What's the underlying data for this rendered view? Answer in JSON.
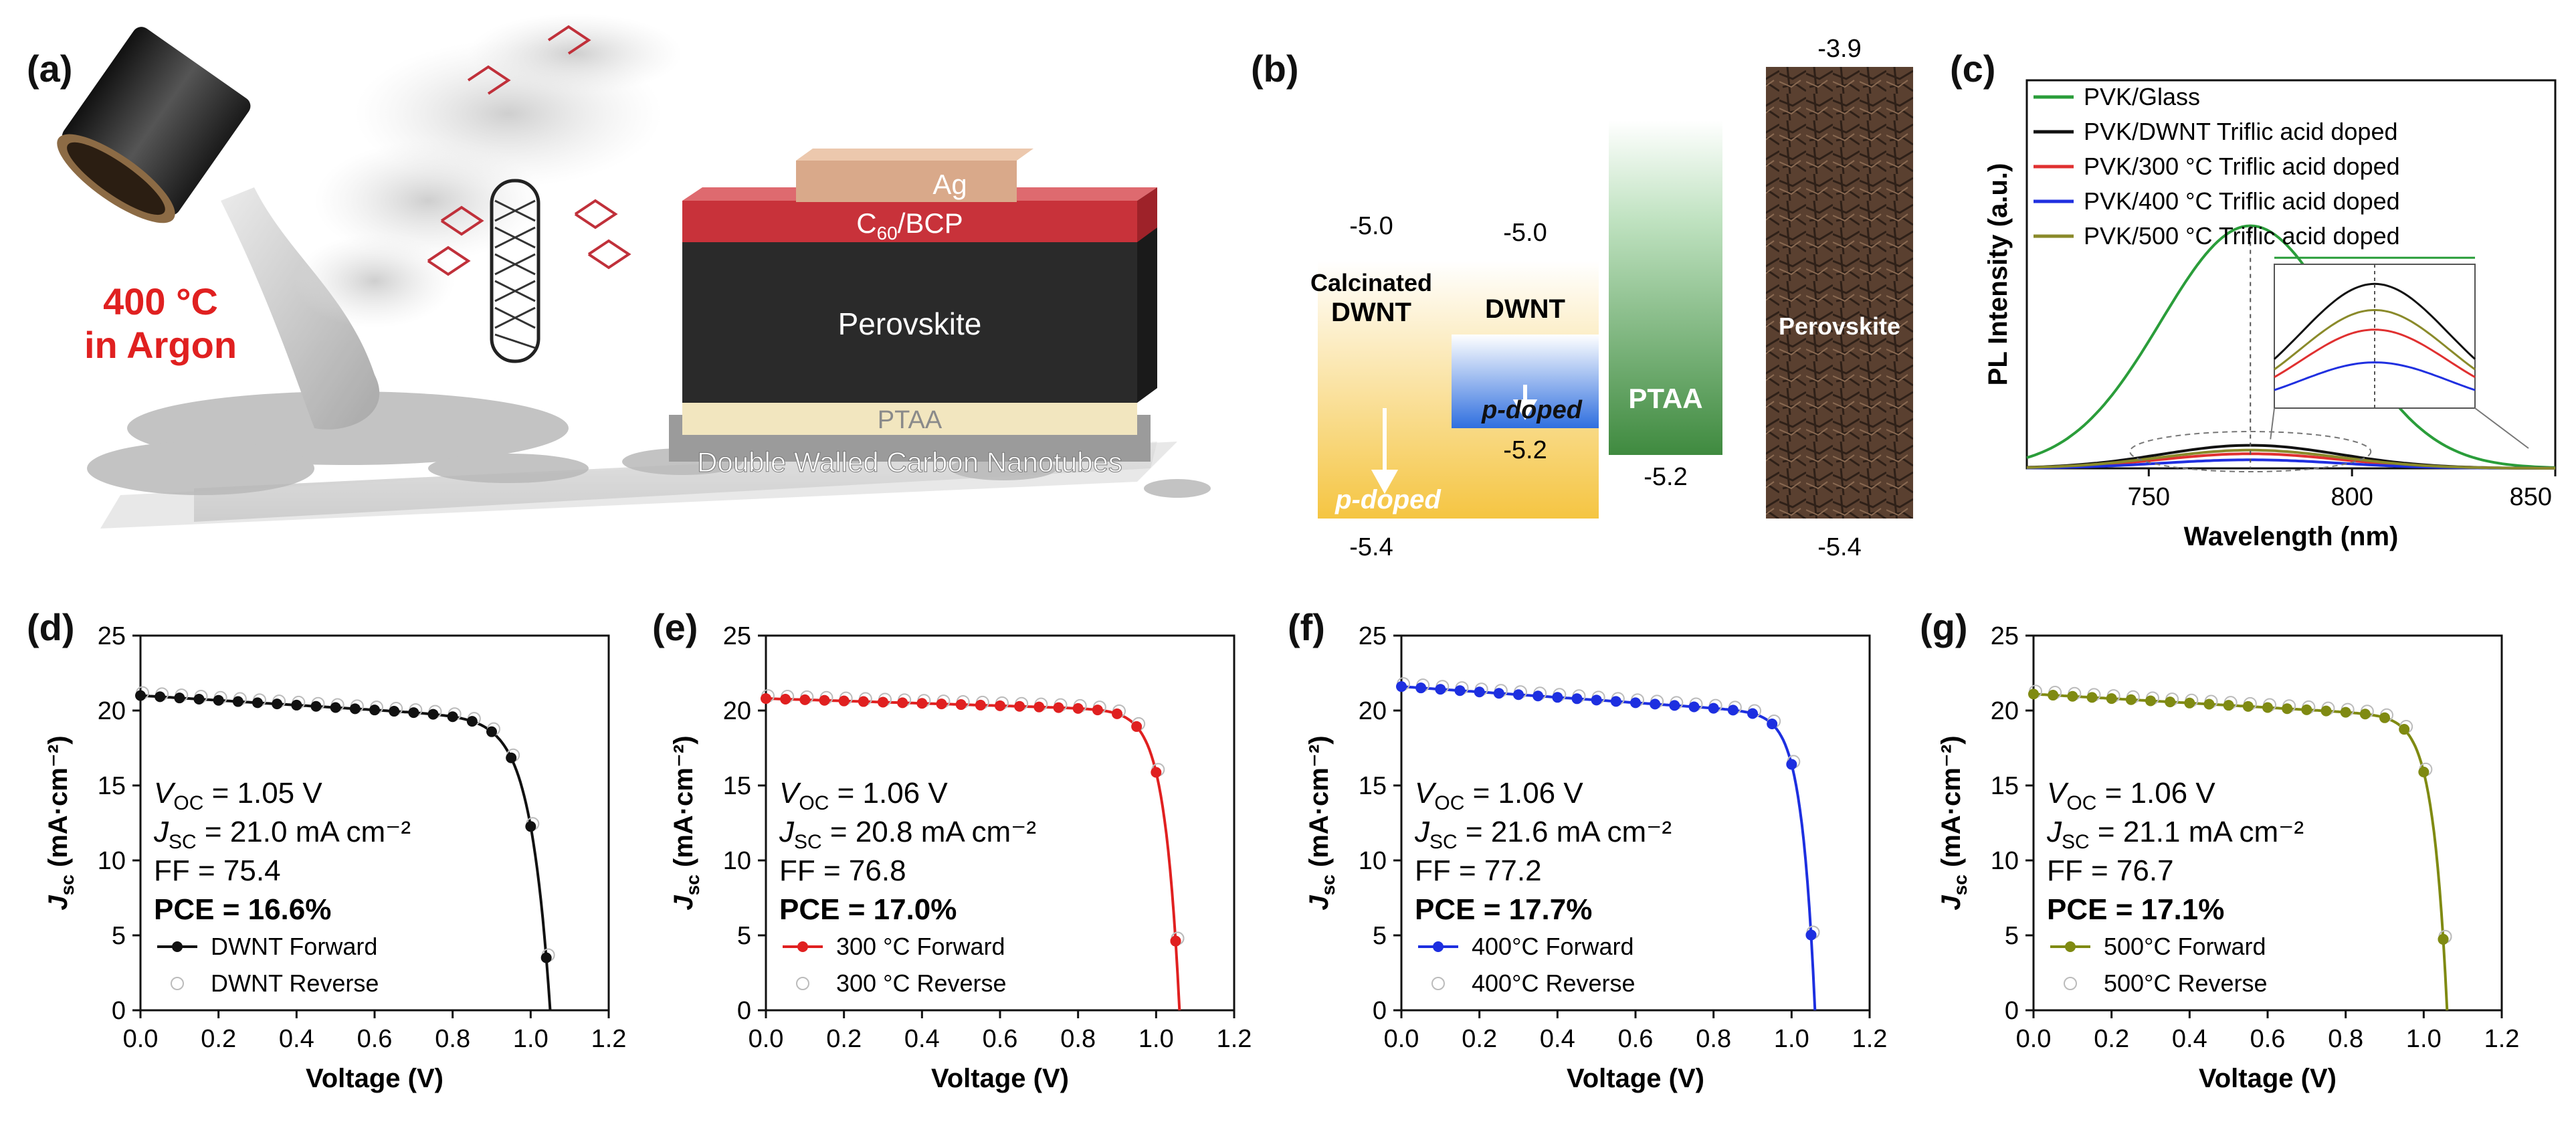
{
  "panels": {
    "a": "(a)",
    "b": "(b)",
    "c": "(c)",
    "d": "(d)",
    "e": "(e)",
    "f": "(f)",
    "g": "(g)"
  },
  "schematic": {
    "process_line1": "400 °C",
    "process_line2": "in Argon",
    "layers": {
      "ag": "Ag",
      "c60_main": "C",
      "c60_sub": "60",
      "c60_rest": "/BCP",
      "perovskite": "Perovskite",
      "ptaa": "PTAA",
      "dwnt": "Double Walled Carbon Nanotubes"
    },
    "colors": {
      "ag": "#d9a98a",
      "c60": "#c8323a",
      "perovskite": "#2a2a2a",
      "ptaa": "#f2e6bf",
      "substrate": "#cfcfcf"
    }
  },
  "energy": {
    "calcinated": {
      "top": "-5.0",
      "bottom": "-5.4",
      "label1": "Calcinated",
      "label2": "DWNT",
      "doped": "p-doped"
    },
    "dwnt": {
      "top": "-5.0",
      "bottom": "-5.2",
      "label": "DWNT",
      "doped": "p-doped"
    },
    "ptaa": {
      "bottom": "-5.2",
      "label": "PTAA"
    },
    "perovskite": {
      "top": "-3.9",
      "bottom": "-5.4",
      "label": "Perovskite"
    },
    "colors": {
      "yellow": "#f5c542",
      "blue": "#2f6fdf",
      "green": "#3f8a3f",
      "brown": "#5a4030"
    }
  },
  "chart_data": [
    {
      "id": "c",
      "type": "line",
      "xlabel": "Wavelength (nm)",
      "ylabel": "PL Intensity (a.u.)",
      "xlim": [
        720,
        850
      ],
      "ylim": [
        0,
        1.6
      ],
      "x_ticks": [
        "750",
        "800",
        "850"
      ],
      "peak_nm": 775,
      "series": [
        {
          "name": "PVK/Glass",
          "color": "#2a9d3a",
          "amplitude": 1.0,
          "width": 22
        },
        {
          "name": "PVK/DWNT Triflic acid doped",
          "color": "#111111",
          "amplitude": 0.095,
          "width": 22
        },
        {
          "name": "PVK/300 °C Triflic acid doped",
          "color": "#e03030",
          "amplitude": 0.06,
          "width": 22
        },
        {
          "name": "PVK/400 °C Triflic acid doped",
          "color": "#2030e0",
          "amplitude": 0.035,
          "width": 22
        },
        {
          "name": "PVK/500 °C Triflic acid doped",
          "color": "#8a8a2a",
          "amplitude": 0.075,
          "width": 22
        }
      ]
    },
    {
      "id": "d",
      "type": "line",
      "xlabel": "Voltage (V)",
      "ylabel": "J",
      "ylabel_sub": "sc",
      "ylabel_rest": " (mA·cm⁻²)",
      "xlim": [
        0,
        1.2
      ],
      "ylim": [
        0,
        25
      ],
      "x_ticks": [
        "0.0",
        "0.2",
        "0.4",
        "0.6",
        "0.8",
        "1.0",
        "1.2"
      ],
      "y_ticks": [
        "0",
        "5",
        "10",
        "15",
        "20",
        "25"
      ],
      "color": "#111111",
      "voc": 1.05,
      "jsc": 21.0,
      "ff_shape": 0.05,
      "slope": 1.6,
      "metrics": {
        "voc": "V",
        "voc_sub": "OC",
        "voc_val": " = 1.05 V",
        "jsc": "J",
        "jsc_sub": "SC",
        "jsc_val": " = 21.0 mA cm⁻²",
        "ff": "FF = 75.4",
        "pce": "PCE = 16.6%"
      },
      "legend": {
        "forward": "DWNT Forward",
        "reverse": "DWNT Reverse"
      }
    },
    {
      "id": "e",
      "type": "line",
      "xlabel": "Voltage (V)",
      "ylabel": "J",
      "ylabel_sub": "sc",
      "ylabel_rest": " (mA·cm⁻²)",
      "xlim": [
        0,
        1.2
      ],
      "ylim": [
        0,
        25
      ],
      "x_ticks": [
        "0.0",
        "0.2",
        "0.4",
        "0.6",
        "0.8",
        "1.0",
        "1.2"
      ],
      "y_ticks": [
        "0",
        "5",
        "10",
        "15",
        "20",
        "25"
      ],
      "color": "#e02020",
      "voc": 1.06,
      "jsc": 20.8,
      "ff_shape": 0.038,
      "slope": 0.8,
      "metrics": {
        "voc": "V",
        "voc_sub": "OC",
        "voc_val": " = 1.06 V",
        "jsc": "J",
        "jsc_sub": "SC",
        "jsc_val": " = 20.8 mA cm⁻²",
        "ff": "FF = 76.8",
        "pce": "PCE = 17.0%"
      },
      "legend": {
        "forward": "300 °C Forward",
        "reverse": "300 °C Reverse"
      }
    },
    {
      "id": "f",
      "type": "line",
      "xlabel": "Voltage (V)",
      "ylabel": "J",
      "ylabel_sub": "sc",
      "ylabel_rest": " (mA·cm⁻²)",
      "xlim": [
        0,
        1.2
      ],
      "ylim": [
        0,
        25
      ],
      "x_ticks": [
        "0.0",
        "0.2",
        "0.4",
        "0.6",
        "0.8",
        "1.0",
        "1.2"
      ],
      "y_ticks": [
        "0",
        "5",
        "10",
        "15",
        "20",
        "25"
      ],
      "color": "#1d2fe0",
      "voc": 1.06,
      "jsc": 21.6,
      "ff_shape": 0.034,
      "slope": 1.8,
      "metrics": {
        "voc": "V",
        "voc_sub": "OC",
        "voc_val": " = 1.06 V",
        "jsc": "J",
        "jsc_sub": "SC",
        "jsc_val": " = 21.6 mA cm⁻²",
        "ff": "FF = 77.2",
        "pce": "PCE = 17.7%"
      },
      "legend": {
        "forward": "400°C Forward",
        "reverse": "400°C Reverse"
      }
    },
    {
      "id": "g",
      "type": "line",
      "xlabel": "Voltage (V)",
      "ylabel": "J",
      "ylabel_sub": "sc",
      "ylabel_rest": " (mA·cm⁻²)",
      "xlim": [
        0,
        1.2
      ],
      "ylim": [
        0,
        25
      ],
      "x_ticks": [
        "0.0",
        "0.2",
        "0.4",
        "0.6",
        "0.8",
        "1.0",
        "1.2"
      ],
      "y_ticks": [
        "0",
        "5",
        "10",
        "15",
        "20",
        "25"
      ],
      "color": "#7f8a12",
      "voc": 1.06,
      "jsc": 21.1,
      "ff_shape": 0.036,
      "slope": 1.5,
      "metrics": {
        "voc": "V",
        "voc_sub": "OC",
        "voc_val": " = 1.06 V",
        "jsc": "J",
        "jsc_sub": "SC",
        "jsc_val": " = 21.1 mA cm⁻²",
        "ff": "FF = 76.7",
        "pce": "PCE = 17.1%"
      },
      "legend": {
        "forward": "500°C Forward",
        "reverse": "500°C Reverse"
      }
    }
  ]
}
